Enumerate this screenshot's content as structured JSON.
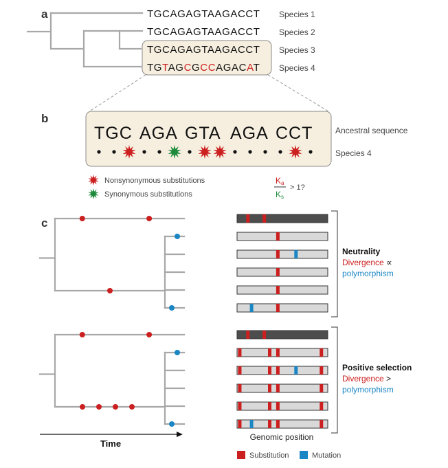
{
  "panel_a": {
    "letter": "a",
    "species": [
      {
        "label": "Species 1",
        "sequence": [
          {
            "t": "TGCAGAGTAAGACCT",
            "c": "black"
          }
        ]
      },
      {
        "label": "Species 2",
        "sequence": [
          {
            "t": "TGCAGAGTAAGACCT",
            "c": "black"
          }
        ]
      },
      {
        "label": "Species 3",
        "sequence": [
          {
            "t": "TGCAGAGTAAGACCT",
            "c": "black"
          }
        ]
      },
      {
        "label": "Species 4",
        "sequence": [
          {
            "t": "TG",
            "c": "black"
          },
          {
            "t": "T",
            "c": "red"
          },
          {
            "t": "AG",
            "c": "black"
          },
          {
            "t": "C",
            "c": "red"
          },
          {
            "t": "G",
            "c": "black"
          },
          {
            "t": "CC",
            "c": "red"
          },
          {
            "t": "AGAC",
            "c": "black"
          },
          {
            "t": "A",
            "c": "red"
          },
          {
            "t": "T",
            "c": "black"
          }
        ]
      }
    ]
  },
  "panel_b": {
    "letter": "b",
    "codons": [
      "TGC",
      "AGA",
      "GTA",
      "AGA",
      "CCT"
    ],
    "ancestral_label": "Ancestral sequence",
    "species_label": "Species 4",
    "sites": [
      "dot",
      "dot",
      "nonsyn",
      "dot",
      "dot",
      "syn",
      "dot",
      "nonsyn",
      "nonsyn",
      "dot",
      "dot",
      "dot",
      "dot",
      "nonsyn",
      "dot"
    ],
    "legend": {
      "nonsynonymous": "Nonsynonymous substitutions",
      "synonymous": "Synonymous substitutions"
    },
    "ratio": {
      "numerator": "K",
      "numerator_sub": "a",
      "denominator": "K",
      "denominator_sub": "s",
      "suffix": "> 1?"
    }
  },
  "panel_c": {
    "letter": "c",
    "time_label": "Time",
    "genomic_label": "Genomic position",
    "scenarios": [
      {
        "title": "Neutrality",
        "line1_red": "Divergence",
        "line1_rest": " ∝",
        "line2_blue": "polymorphism",
        "tree_events": {
          "root_top": [
            0.15,
            0.74
          ],
          "top_tips": [],
          "internal_red": [
            0.5
          ],
          "internal_count": 1,
          "clade_blue": [
            {
              "tip": 0,
              "pos": 0.9
            },
            {
              "tip": 4,
              "pos": 0.9
            }
          ]
        },
        "genomes": [
          {
            "dark": true,
            "marks": [
              {
                "p": 0.12,
                "c": "red"
              },
              {
                "p": 0.3,
                "c": "red"
              }
            ]
          },
          {
            "dark": false,
            "marks": [
              {
                "p": 0.45,
                "c": "red"
              }
            ]
          },
          {
            "dark": false,
            "marks": [
              {
                "p": 0.45,
                "c": "red"
              },
              {
                "p": 0.65,
                "c": "blue"
              }
            ]
          },
          {
            "dark": false,
            "marks": [
              {
                "p": 0.45,
                "c": "red"
              }
            ]
          },
          {
            "dark": false,
            "marks": [
              {
                "p": 0.45,
                "c": "red"
              }
            ]
          },
          {
            "dark": false,
            "marks": [
              {
                "p": 0.16,
                "c": "blue"
              },
              {
                "p": 0.45,
                "c": "red"
              }
            ]
          }
        ]
      },
      {
        "title": "Positive selection",
        "line1_red": "Divergence",
        "line1_rest": " >",
        "line2_blue": "polymorphism",
        "tree_events": {
          "root_top": [
            0.15,
            0.74
          ],
          "internal_red": [
            0.25,
            0.4,
            0.55,
            0.7
          ],
          "clade_blue": [
            {
              "tip": 0,
              "pos": 0.9
            },
            {
              "tip": 4,
              "pos": 0.9
            }
          ]
        },
        "genomes": [
          {
            "dark": true,
            "marks": [
              {
                "p": 0.12,
                "c": "red"
              },
              {
                "p": 0.3,
                "c": "red"
              }
            ]
          },
          {
            "dark": false,
            "marks": [
              {
                "p": 0.03,
                "c": "red"
              },
              {
                "p": 0.36,
                "c": "red"
              },
              {
                "p": 0.45,
                "c": "red"
              },
              {
                "p": 0.93,
                "c": "red"
              }
            ]
          },
          {
            "dark": false,
            "marks": [
              {
                "p": 0.03,
                "c": "red"
              },
              {
                "p": 0.36,
                "c": "red"
              },
              {
                "p": 0.45,
                "c": "red"
              },
              {
                "p": 0.65,
                "c": "blue"
              },
              {
                "p": 0.93,
                "c": "red"
              }
            ]
          },
          {
            "dark": false,
            "marks": [
              {
                "p": 0.03,
                "c": "red"
              },
              {
                "p": 0.36,
                "c": "red"
              },
              {
                "p": 0.45,
                "c": "red"
              },
              {
                "p": 0.93,
                "c": "red"
              }
            ]
          },
          {
            "dark": false,
            "marks": [
              {
                "p": 0.03,
                "c": "red"
              },
              {
                "p": 0.36,
                "c": "red"
              },
              {
                "p": 0.45,
                "c": "red"
              },
              {
                "p": 0.93,
                "c": "red"
              }
            ]
          },
          {
            "dark": false,
            "marks": [
              {
                "p": 0.03,
                "c": "red"
              },
              {
                "p": 0.16,
                "c": "blue"
              },
              {
                "p": 0.36,
                "c": "red"
              },
              {
                "p": 0.45,
                "c": "red"
              },
              {
                "p": 0.93,
                "c": "red"
              }
            ]
          }
        ]
      }
    ],
    "legend": {
      "substitution": "Substitution",
      "mutation": "Mutation"
    }
  },
  "colors": {
    "red": "#cc1f1f",
    "green": "#1e8a3c",
    "blue": "#1a86c4",
    "highlight_fill": "#f6efdf",
    "highlight_stroke": "#8a8a8a",
    "tree": "#a8a8a8"
  }
}
